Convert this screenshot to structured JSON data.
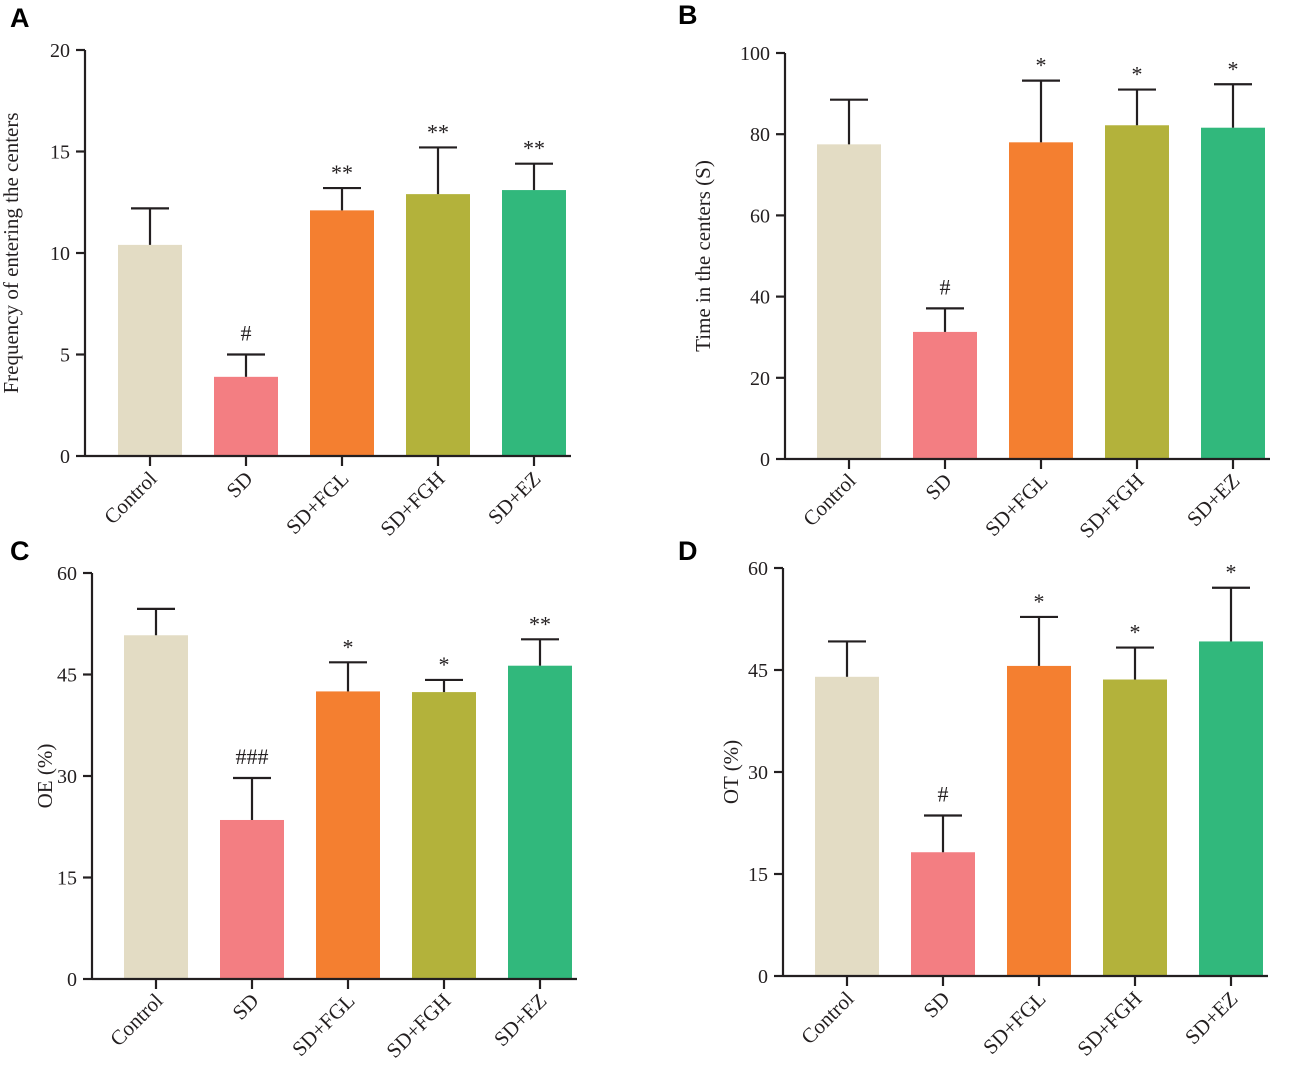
{
  "colors": [
    "#e3dcc4",
    "#f37e82",
    "#f47f30",
    "#b3b23b",
    "#31b87c"
  ],
  "chart_data": [
    {
      "panel": "A",
      "type": "bar",
      "categories": [
        "Control",
        "SD",
        "SD+FGL",
        "SD+FGH",
        "SD+EZ"
      ],
      "values": [
        10.4,
        3.9,
        12.1,
        12.9,
        13.1
      ],
      "errors": [
        1.8,
        1.1,
        1.1,
        2.3,
        1.3
      ],
      "significance": [
        "",
        "#",
        "**",
        "**",
        "**"
      ],
      "ylabel": "Frequency of entering the centers",
      "ylim": [
        0,
        20
      ],
      "yticks": [
        "0",
        "5",
        "10",
        "15",
        "20"
      ]
    },
    {
      "panel": "B",
      "type": "bar",
      "categories": [
        "Control",
        "SD",
        "SD+FGL",
        "SD+FGH",
        "SD+EZ"
      ],
      "values": [
        77.5,
        31.3,
        78,
        82.2,
        81.6
      ],
      "errors": [
        11,
        5.8,
        15.2,
        8.8,
        10.7
      ],
      "significance": [
        "",
        "#",
        "*",
        "*",
        "*"
      ],
      "ylabel": "Time in the centers (S)",
      "ylim": [
        0,
        100
      ],
      "yticks": [
        "0",
        "20",
        "40",
        "60",
        "80",
        "100"
      ]
    },
    {
      "panel": "C",
      "type": "bar",
      "categories": [
        "Control",
        "SD",
        "SD+FGL",
        "SD+FGH",
        "SD+EZ"
      ],
      "values": [
        50.8,
        23.5,
        42.5,
        42.4,
        46.3
      ],
      "errors": [
        3.9,
        6.2,
        4.3,
        1.8,
        3.9
      ],
      "significance": [
        "",
        "###",
        "*",
        "*",
        "**"
      ],
      "ylabel": "OE (%)",
      "ylim": [
        0,
        60
      ],
      "yticks": [
        "0",
        "15",
        "30",
        "45",
        "60"
      ]
    },
    {
      "panel": "D",
      "type": "bar",
      "categories": [
        "Control",
        "SD",
        "SD+FGL",
        "SD+FGH",
        "SD+EZ"
      ],
      "values": [
        44,
        18.2,
        45.6,
        43.6,
        49.2
      ],
      "errors": [
        5.2,
        5.4,
        7.2,
        4.7,
        7.9
      ],
      "significance": [
        "",
        "#",
        "*",
        "*",
        "*"
      ],
      "ylabel": "OT (%)",
      "ylim": [
        0,
        60
      ],
      "yticks": [
        "0",
        "15",
        "30",
        "45",
        "60"
      ]
    }
  ]
}
